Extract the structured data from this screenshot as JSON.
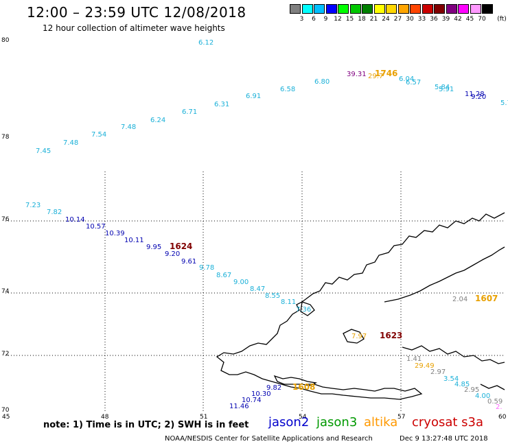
{
  "header": {
    "title": "12:00 – 23:59 UTC 12/08/2018",
    "subtitle": "12 hour collection of altimeter wave heights"
  },
  "scale": {
    "unit": "(ft)",
    "colors": [
      "#808080",
      "#00ffff",
      "#00bfff",
      "#0000ff",
      "#00ff00",
      "#00c800",
      "#008000",
      "#ffff00",
      "#ffd700",
      "#ffa500",
      "#ff4500",
      "#cc0000",
      "#800000",
      "#800080",
      "#ff00ff",
      "#ff99ff",
      "#000000"
    ],
    "labels": [
      "3",
      "6",
      "9",
      "12",
      "15",
      "18",
      "21",
      "24",
      "27",
      "30",
      "33",
      "36",
      "39",
      "42",
      "45",
      "70"
    ]
  },
  "axes": {
    "lat": [
      "80",
      "78",
      "76",
      "74",
      "72",
      "70"
    ],
    "lon": [
      "45",
      "48",
      "51",
      "54",
      "57",
      "60"
    ]
  },
  "observations": [
    {
      "t": "6.12",
      "c": "#1ab0d8"
    },
    {
      "t": "7.45",
      "c": "#1ab0d8"
    },
    {
      "t": "7.48",
      "c": "#1ab0d8"
    },
    {
      "t": "7.54",
      "c": "#1ab0d8"
    },
    {
      "t": "7.48",
      "c": "#1ab0d8"
    },
    {
      "t": "6.24",
      "c": "#1ab0d8"
    },
    {
      "t": "6.71",
      "c": "#1ab0d8"
    },
    {
      "t": "6.31",
      "c": "#1ab0d8"
    },
    {
      "t": "6.91",
      "c": "#1ab0d8"
    },
    {
      "t": "6.58",
      "c": "#1ab0d8"
    },
    {
      "t": "6.80",
      "c": "#1ab0d8"
    },
    {
      "t": "39.31",
      "c": "#800080"
    },
    {
      "t": "29.7",
      "c": "#e8a000"
    },
    {
      "t": "1746",
      "c": "#e8a000"
    },
    {
      "t": "6.04",
      "c": "#1ab0d8"
    },
    {
      "t": "6.57",
      "c": "#1ab0d8"
    },
    {
      "t": "5.84",
      "c": "#1ab0d8"
    },
    {
      "t": "5.91",
      "c": "#1ab0d8"
    },
    {
      "t": "11.28",
      "c": "#0000b0"
    },
    {
      "t": "9.20",
      "c": "#0000b0"
    },
    {
      "t": "5.7",
      "c": "#1ab0d8"
    },
    {
      "t": "7.23",
      "c": "#1ab0d8"
    },
    {
      "t": "7.82",
      "c": "#1ab0d8"
    },
    {
      "t": "10.14",
      "c": "#0000b0"
    },
    {
      "t": "10.57",
      "c": "#0000b0"
    },
    {
      "t": "10.39",
      "c": "#0000b0"
    },
    {
      "t": "10.11",
      "c": "#0000b0"
    },
    {
      "t": "9.95",
      "c": "#0000b0"
    },
    {
      "t": "1624",
      "c": "#800000"
    },
    {
      "t": "9.20",
      "c": "#0000b0"
    },
    {
      "t": "9.61",
      "c": "#0000b0"
    },
    {
      "t": "9.78",
      "c": "#1ab0d8"
    },
    {
      "t": "8.67",
      "c": "#1ab0d8"
    },
    {
      "t": "9.00",
      "c": "#1ab0d8"
    },
    {
      "t": "8.47",
      "c": "#1ab0d8"
    },
    {
      "t": "8.55",
      "c": "#1ab0d8"
    },
    {
      "t": "8.11",
      "c": "#1ab0d8"
    },
    {
      "t": "7.36",
      "c": "#1ab0d8"
    },
    {
      "t": "2.04",
      "c": "#808080"
    },
    {
      "t": "1607",
      "c": "#e8a000"
    },
    {
      "t": "7.97",
      "c": "#e8a000"
    },
    {
      "t": "1623",
      "c": "#800000"
    },
    {
      "t": "1.41",
      "c": "#808080"
    },
    {
      "t": "29.49",
      "c": "#e8a000"
    },
    {
      "t": "2.97",
      "c": "#808080"
    },
    {
      "t": "3.54",
      "c": "#1ab0d8"
    },
    {
      "t": "4.85",
      "c": "#1ab0d8"
    },
    {
      "t": "2.95",
      "c": "#808080"
    },
    {
      "t": "4.00",
      "c": "#1ab0d8"
    },
    {
      "t": "0.59",
      "c": "#808080"
    },
    {
      "t": "2.",
      "c": "#ff66ff"
    },
    {
      "t": "9.82",
      "c": "#0000b0"
    },
    {
      "t": "1608",
      "c": "#e8a000"
    },
    {
      "t": "10.30",
      "c": "#0000b0"
    },
    {
      "t": "10.74",
      "c": "#0000b0"
    },
    {
      "t": "11.46",
      "c": "#0000b0"
    }
  ],
  "note": "note: 1) Time is in UTC; 2) SWH is in feet",
  "satellites": [
    {
      "name": "jason2",
      "color": "#0000cc"
    },
    {
      "name": "jason3",
      "color": "#009900"
    },
    {
      "name": "altika",
      "color": "#ff9900"
    },
    {
      "name": "cryosat s3a",
      "color": "#cc0000"
    }
  ],
  "footer": {
    "left": "NOAA/NESDIS Center for Satellite Applications and Research",
    "right": "Dec  9 13:27:48 UTC 2018"
  }
}
